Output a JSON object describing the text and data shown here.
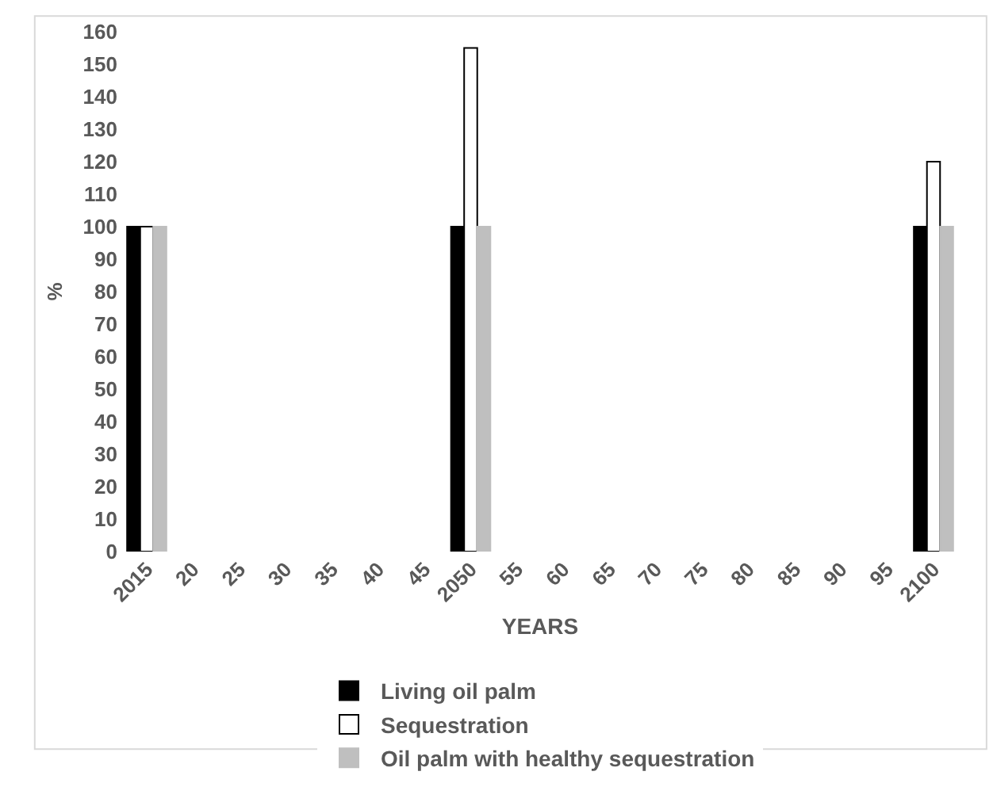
{
  "chart_data": {
    "type": "bar",
    "xlabel": "YEARS",
    "ylabel": "%",
    "categories": [
      "2015",
      "20",
      "25",
      "30",
      "35",
      "40",
      "45",
      "2050",
      "55",
      "60",
      "65",
      "70",
      "75",
      "80",
      "85",
      "90",
      "95",
      "2100"
    ],
    "series": [
      {
        "name": "Living oil palm",
        "color": "#000000",
        "values": [
          100,
          null,
          null,
          null,
          null,
          null,
          null,
          100,
          null,
          null,
          null,
          null,
          null,
          null,
          null,
          null,
          null,
          100
        ]
      },
      {
        "name": "Sequestration",
        "color": "#ffffff",
        "values": [
          100,
          null,
          null,
          null,
          null,
          null,
          null,
          155,
          null,
          null,
          null,
          null,
          null,
          null,
          null,
          null,
          null,
          120
        ]
      },
      {
        "name": "Oil palm with healthy sequestration",
        "color": "#bfbfbf",
        "values": [
          100,
          null,
          null,
          null,
          null,
          null,
          null,
          100,
          null,
          null,
          null,
          null,
          null,
          null,
          null,
          null,
          null,
          100
        ]
      }
    ],
    "ylim": [
      0,
      160
    ],
    "yticks": [
      0,
      10,
      20,
      30,
      40,
      50,
      60,
      70,
      80,
      90,
      100,
      110,
      120,
      130,
      140,
      150,
      160
    ],
    "grid": false,
    "legend": "bottom"
  }
}
